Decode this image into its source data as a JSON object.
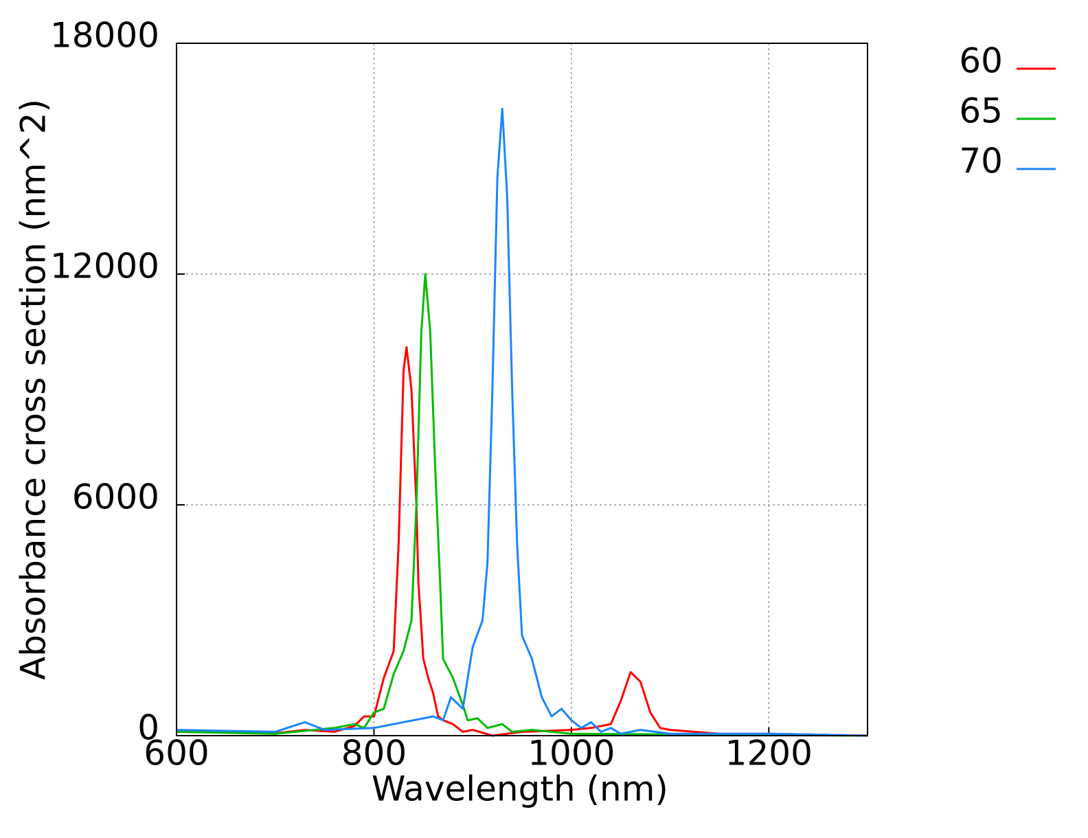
{
  "chart_data": {
    "type": "line",
    "xlabel": "Wavelength (nm)",
    "ylabel": "Absorbance cross section (nm^2)",
    "xlim": [
      600,
      1300
    ],
    "ylim": [
      0,
      18000
    ],
    "xticks": [
      600,
      800,
      1000,
      1200
    ],
    "yticks": [
      0,
      6000,
      12000,
      18000
    ],
    "grid": true,
    "legend": "outside-right-top",
    "series": [
      {
        "name": "60",
        "color": "#ff0000",
        "x": [
          600,
          650,
          700,
          730,
          760,
          780,
          790,
          800,
          810,
          820,
          825,
          830,
          833,
          838,
          843,
          845,
          850,
          855,
          860,
          865,
          870,
          880,
          890,
          900,
          920,
          950,
          1000,
          1020,
          1040,
          1050,
          1060,
          1070,
          1080,
          1090,
          1100,
          1150,
          1200,
          1300
        ],
        "values": [
          100,
          80,
          60,
          150,
          100,
          250,
          500,
          500,
          1500,
          2200,
          5000,
          9500,
          10100,
          9000,
          6000,
          4000,
          2000,
          1500,
          1100,
          500,
          400,
          300,
          100,
          150,
          0,
          100,
          150,
          200,
          300,
          900,
          1650,
          1400,
          600,
          200,
          150,
          50,
          50,
          0
        ]
      },
      {
        "name": "65",
        "color": "#00bb00",
        "x": [
          600,
          700,
          760,
          780,
          790,
          800,
          810,
          820,
          830,
          838,
          843,
          848,
          852,
          857,
          862,
          867,
          870,
          880,
          890,
          895,
          905,
          915,
          930,
          940,
          960,
          1000,
          1300
        ],
        "values": [
          100,
          50,
          200,
          300,
          200,
          600,
          700,
          1600,
          2200,
          3000,
          6000,
          10500,
          12000,
          10500,
          7000,
          4000,
          2000,
          1500,
          800,
          400,
          450,
          200,
          300,
          100,
          150,
          50,
          0
        ]
      },
      {
        "name": "70",
        "color": "#1a85ff",
        "x": [
          600,
          700,
          730,
          750,
          800,
          820,
          840,
          860,
          870,
          878,
          890,
          900,
          910,
          915,
          920,
          925,
          930,
          935,
          940,
          945,
          950,
          960,
          970,
          980,
          990,
          1000,
          1010,
          1020,
          1030,
          1040,
          1050,
          1070,
          1100,
          1200,
          1300
        ],
        "values": [
          150,
          100,
          350,
          150,
          200,
          300,
          400,
          500,
          400,
          1000,
          700,
          2300,
          3000,
          4500,
          9000,
          14500,
          16300,
          14000,
          9000,
          5000,
          2600,
          2000,
          1000,
          500,
          700,
          400,
          200,
          350,
          100,
          200,
          50,
          150,
          50,
          50,
          0
        ]
      }
    ]
  }
}
